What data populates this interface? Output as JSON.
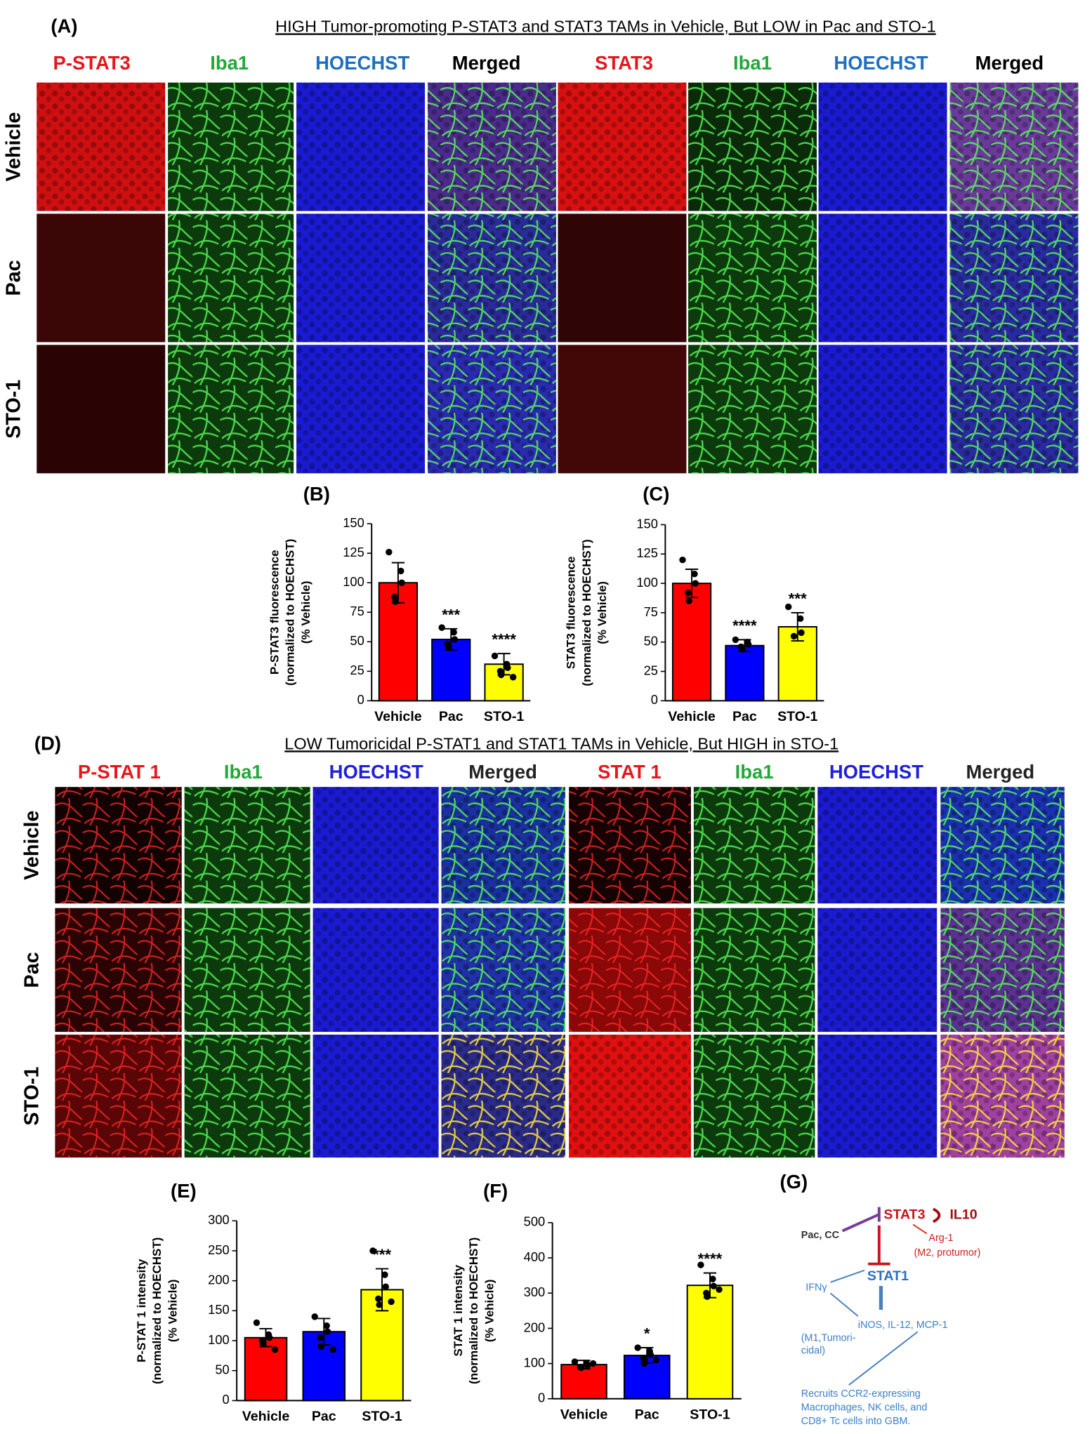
{
  "panel_a": {
    "label": "(A)",
    "title": "HIGH Tumor-promoting P-STAT3 and STAT3 TAMs in Vehicle, But LOW in Pac and STO-1",
    "columns": [
      "P-STAT3",
      "Iba1",
      "HOECHST",
      "Merged",
      "STAT3",
      "Iba1",
      "HOECHST",
      "Merged"
    ],
    "column_colors": [
      "#e8151b",
      "#22a83a",
      "#1f6fc0",
      "#000000",
      "#e8151b",
      "#22a83a",
      "#1f6fc0",
      "#000000"
    ],
    "rows": [
      "Vehicle",
      "Pac",
      "STO-1"
    ]
  },
  "panel_d": {
    "label": "(D)",
    "title": "LOW Tumoricidal P-STAT1 and STAT1 TAMs in Vehicle, But HIGH in STO-1",
    "columns": [
      "P-STAT 1",
      "Iba1",
      "HOECHST",
      "Merged",
      "STAT 1",
      "Iba1",
      "HOECHST",
      "Merged"
    ],
    "column_colors": [
      "#e8151b",
      "#22a83a",
      "#2020d8",
      "#222222",
      "#e8151b",
      "#22a83a",
      "#2020d8",
      "#222222"
    ],
    "rows": [
      "Vehicle",
      "Pac",
      "STO-1"
    ]
  },
  "chart_data": [
    {
      "type": "bar",
      "label": "(B)",
      "ylabel": [
        "P-STAT3 fluorescence",
        "(normalized to HOECHST)",
        "(% Vehicle)"
      ],
      "categories": [
        "Vehicle",
        "Pac",
        "STO-1"
      ],
      "values": [
        100,
        52,
        31
      ],
      "errors": [
        17,
        9,
        9
      ],
      "points": [
        [
          126,
          110,
          100,
          88,
          84
        ],
        [
          62,
          58,
          52,
          48,
          45
        ],
        [
          38,
          31,
          28,
          25,
          22,
          20
        ]
      ],
      "annotations": [
        null,
        "***",
        "****"
      ],
      "colors": [
        "#ff0000",
        "#0000ff",
        "#ffff00"
      ],
      "ylim": [
        0,
        150
      ],
      "yticks": [
        0,
        25,
        50,
        75,
        100,
        125,
        150
      ]
    },
    {
      "type": "bar",
      "label": "(C)",
      "ylabel": [
        "STAT3 fluorescence",
        "(normalized to HOECHST)",
        "(% Vehicle)"
      ],
      "categories": [
        "Vehicle",
        "Pac",
        "STO-1"
      ],
      "values": [
        100,
        47,
        63
      ],
      "errors": [
        12,
        5,
        12
      ],
      "points": [
        [
          120,
          108,
          100,
          92,
          85
        ],
        [
          52,
          50,
          48,
          46,
          44
        ],
        [
          80,
          70,
          58,
          55
        ]
      ],
      "annotations": [
        null,
        "****",
        "***"
      ],
      "colors": [
        "#ff0000",
        "#0000ff",
        "#ffff00"
      ],
      "ylim": [
        0,
        150
      ],
      "yticks": [
        0,
        25,
        50,
        75,
        100,
        125,
        150
      ]
    },
    {
      "type": "bar",
      "label": "(E)",
      "ylabel": [
        "P-STAT 1 intensity",
        "(normalized to HOECHST)",
        "(% Vehicle)"
      ],
      "categories": [
        "Vehicle",
        "Pac",
        "STO-1"
      ],
      "values": [
        105,
        115,
        185
      ],
      "errors": [
        15,
        22,
        35
      ],
      "points": [
        [
          130,
          110,
          105,
          100,
          95,
          85
        ],
        [
          140,
          125,
          115,
          105,
          90,
          85
        ],
        [
          250,
          210,
          190,
          170,
          160,
          165
        ]
      ],
      "annotations": [
        null,
        null,
        "***"
      ],
      "colors": [
        "#ff0000",
        "#0000ff",
        "#ffff00"
      ],
      "ylim": [
        0,
        300
      ],
      "yticks": [
        0,
        50,
        100,
        150,
        200,
        250,
        300
      ]
    },
    {
      "type": "bar",
      "label": "(F)",
      "ylabel": [
        "STAT 1 intensity",
        "(normalized to HOECHST)",
        "(% Vehicle)"
      ],
      "categories": [
        "Vehicle",
        "Pac",
        "STO-1"
      ],
      "values": [
        97,
        123,
        322
      ],
      "errors": [
        12,
        22,
        35
      ],
      "points": [
        [
          105,
          100,
          95,
          90,
          88,
          100
        ],
        [
          145,
          135,
          125,
          115,
          100,
          110
        ],
        [
          380,
          340,
          320,
          300,
          290,
          310
        ]
      ],
      "annotations": [
        null,
        "*",
        "****"
      ],
      "colors": [
        "#ff0000",
        "#0000ff",
        "#ffff00"
      ],
      "ylim": [
        0,
        500
      ],
      "yticks": [
        0,
        100,
        200,
        300,
        400,
        500
      ]
    }
  ],
  "panel_g": {
    "label": "(G)",
    "drug": "Pac, CC",
    "stat3": "STAT3",
    "il10": "IL10",
    "arg": "Arg-1",
    "m2": "(M2, protumor)",
    "stat1": "STAT1",
    "ifn": "IFNγ",
    "inos": "iNOS, IL-12, MCP-1",
    "m1": [
      "(M1,Tumori-",
      "cidal)"
    ],
    "recruits": [
      "Recruits CCR2-expressing",
      "Macrophages, NK cells, and",
      "CD8+ Tc cells into GBM."
    ]
  }
}
